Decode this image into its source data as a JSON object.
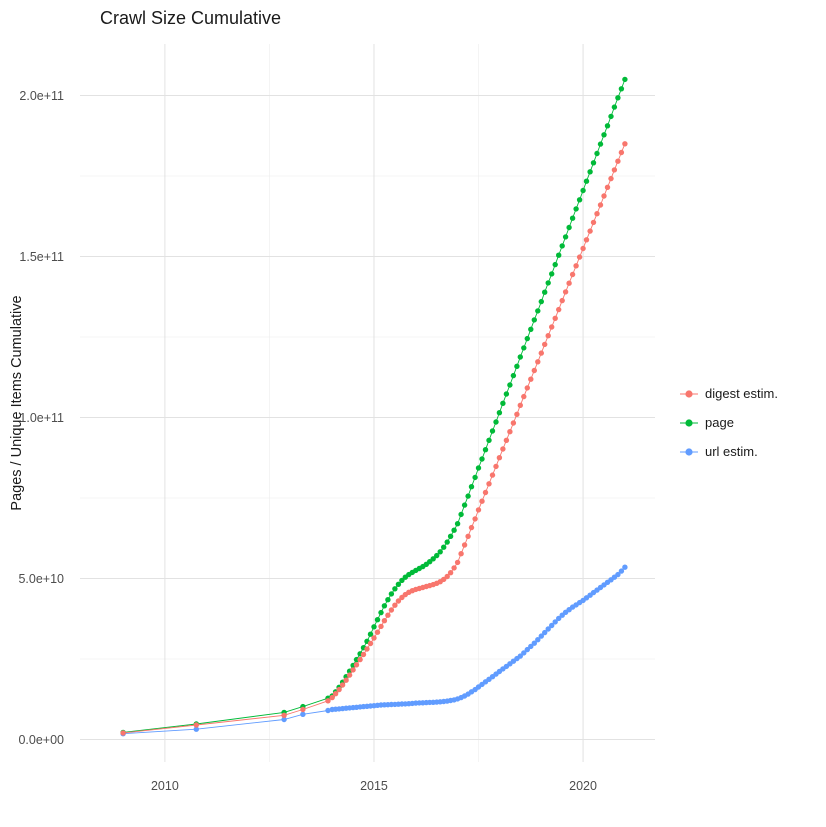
{
  "title": "Crawl Size Cumulative",
  "chart_data": {
    "type": "line",
    "title": "Crawl Size Cumulative",
    "xlabel": "",
    "ylabel": "Pages / Unique Items Cumulative",
    "legend_position": "right",
    "grid": {
      "major_color": "#e2e2e2",
      "minor_color": "#f0f0f0",
      "x_minor": [
        2012.5,
        2017.5
      ],
      "y_minor": [
        25,
        75,
        125,
        175
      ]
    },
    "x_ticks": {
      "values": [
        2010,
        2015,
        2020
      ],
      "labels": [
        "2010",
        "2015",
        "2020"
      ]
    },
    "y_ticks": {
      "values": [
        0,
        50,
        100,
        150,
        200
      ],
      "labels": [
        "0.0e+00",
        "5.0e+10",
        "1.0e+11",
        "1.5e+11",
        "2.0e+11"
      ]
    },
    "y_unit": 1000000000,
    "xlim": [
      2007.97,
      2021.72
    ],
    "ylim": [
      -7,
      216
    ],
    "x": [
      2009,
      2010.75,
      2012.85,
      2013.3,
      2013.9,
      2014,
      2014.083,
      2014.167,
      2014.25,
      2014.333,
      2014.417,
      2014.5,
      2014.583,
      2014.667,
      2014.75,
      2014.833,
      2014.917,
      2015,
      2015.083,
      2015.167,
      2015.25,
      2015.333,
      2015.417,
      2015.5,
      2015.583,
      2015.667,
      2015.75,
      2015.833,
      2015.917,
      2016,
      2016.083,
      2016.167,
      2016.25,
      2016.333,
      2016.417,
      2016.5,
      2016.583,
      2016.667,
      2016.75,
      2016.833,
      2016.917,
      2017,
      2017.083,
      2017.167,
      2017.25,
      2017.333,
      2017.417,
      2017.5,
      2017.583,
      2017.667,
      2017.75,
      2017.833,
      2017.917,
      2018,
      2018.083,
      2018.167,
      2018.25,
      2018.333,
      2018.417,
      2018.5,
      2018.583,
      2018.667,
      2018.75,
      2018.833,
      2018.917,
      2019,
      2019.083,
      2019.167,
      2019.25,
      2019.333,
      2019.417,
      2019.5,
      2019.583,
      2019.667,
      2019.75,
      2019.833,
      2019.917,
      2020,
      2020.083,
      2020.167,
      2020.25,
      2020.333,
      2020.417,
      2020.5,
      2020.583,
      2020.667,
      2020.75,
      2020.833,
      2020.917,
      2021
    ],
    "series": [
      {
        "name": "digest estim.",
        "color": "#F8766D",
        "values": [
          2.0,
          4.5,
          7.5,
          9.3,
          12.0,
          13.0,
          14.2,
          15.5,
          16.9,
          18.4,
          20.0,
          21.6,
          23.2,
          24.8,
          26.4,
          28.1,
          29.8,
          31.5,
          33.3,
          35.1,
          36.9,
          38.6,
          40.2,
          41.7,
          43.0,
          44.1,
          45.0,
          45.7,
          46.2,
          46.6,
          46.9,
          47.2,
          47.5,
          47.8,
          48.1,
          48.5,
          49.0,
          49.7,
          50.6,
          51.8,
          53.3,
          55.0,
          57.7,
          60.4,
          63.1,
          65.8,
          68.5,
          71.3,
          74.0,
          76.7,
          79.4,
          82.1,
          84.8,
          87.5,
          90.2,
          92.9,
          95.6,
          98.3,
          101.0,
          103.8,
          106.5,
          109.2,
          111.9,
          114.6,
          117.3,
          120.0,
          122.7,
          125.4,
          128.1,
          130.8,
          133.5,
          136.3,
          139.0,
          141.7,
          144.4,
          147.1,
          149.8,
          152.5,
          155.2,
          157.9,
          160.6,
          163.3,
          166.0,
          168.8,
          171.5,
          174.2,
          176.9,
          179.6,
          182.3,
          185.0
        ]
      },
      {
        "name": "page",
        "color": "#00BA38",
        "values": [
          2.2,
          4.8,
          8.4,
          10.2,
          12.8,
          13.5,
          14.8,
          16.2,
          17.8,
          19.5,
          21.2,
          23.0,
          24.8,
          26.6,
          28.5,
          30.5,
          32.7,
          35.0,
          37.2,
          39.4,
          41.5,
          43.4,
          45.2,
          46.8,
          48.2,
          49.4,
          50.4,
          51.2,
          51.9,
          52.5,
          53.1,
          53.7,
          54.4,
          55.2,
          56.1,
          57.1,
          58.3,
          59.7,
          61.3,
          63.1,
          65.0,
          67.0,
          69.9,
          72.8,
          75.6,
          78.5,
          81.4,
          84.3,
          87.1,
          90.0,
          92.9,
          95.8,
          98.6,
          101.5,
          104.4,
          107.3,
          110.1,
          113.0,
          115.9,
          118.8,
          121.6,
          124.5,
          127.4,
          130.3,
          133.1,
          136.0,
          138.9,
          141.8,
          144.6,
          147.5,
          150.4,
          153.3,
          156.1,
          159.0,
          161.9,
          164.8,
          167.6,
          170.5,
          173.4,
          176.3,
          179.1,
          182.0,
          184.9,
          187.8,
          190.6,
          193.5,
          196.4,
          199.3,
          202.1,
          205.0
        ]
      },
      {
        "name": "url estim.",
        "color": "#619CFF",
        "values": [
          1.8,
          3.2,
          6.2,
          7.8,
          9.0,
          9.3,
          9.4,
          9.5,
          9.6,
          9.7,
          9.8,
          9.9,
          10.0,
          10.1,
          10.2,
          10.3,
          10.4,
          10.5,
          10.6,
          10.7,
          10.75,
          10.8,
          10.85,
          10.9,
          10.95,
          11.0,
          11.05,
          11.1,
          11.2,
          11.3,
          11.35,
          11.4,
          11.45,
          11.5,
          11.55,
          11.6,
          11.7,
          11.8,
          11.9,
          12.1,
          12.3,
          12.6,
          13.0,
          13.5,
          14.1,
          14.8,
          15.5,
          16.3,
          17.1,
          17.9,
          18.7,
          19.5,
          20.3,
          21.1,
          21.9,
          22.7,
          23.5,
          24.3,
          25.1,
          25.9,
          26.9,
          27.9,
          28.9,
          29.9,
          31.0,
          32.1,
          33.2,
          34.3,
          35.4,
          36.5,
          37.6,
          38.6,
          39.5,
          40.3,
          41.1,
          41.8,
          42.5,
          43.2,
          44.0,
          44.8,
          45.6,
          46.4,
          47.2,
          48.0,
          48.8,
          49.6,
          50.4,
          51.2,
          52.3,
          53.5
        ]
      }
    ]
  }
}
